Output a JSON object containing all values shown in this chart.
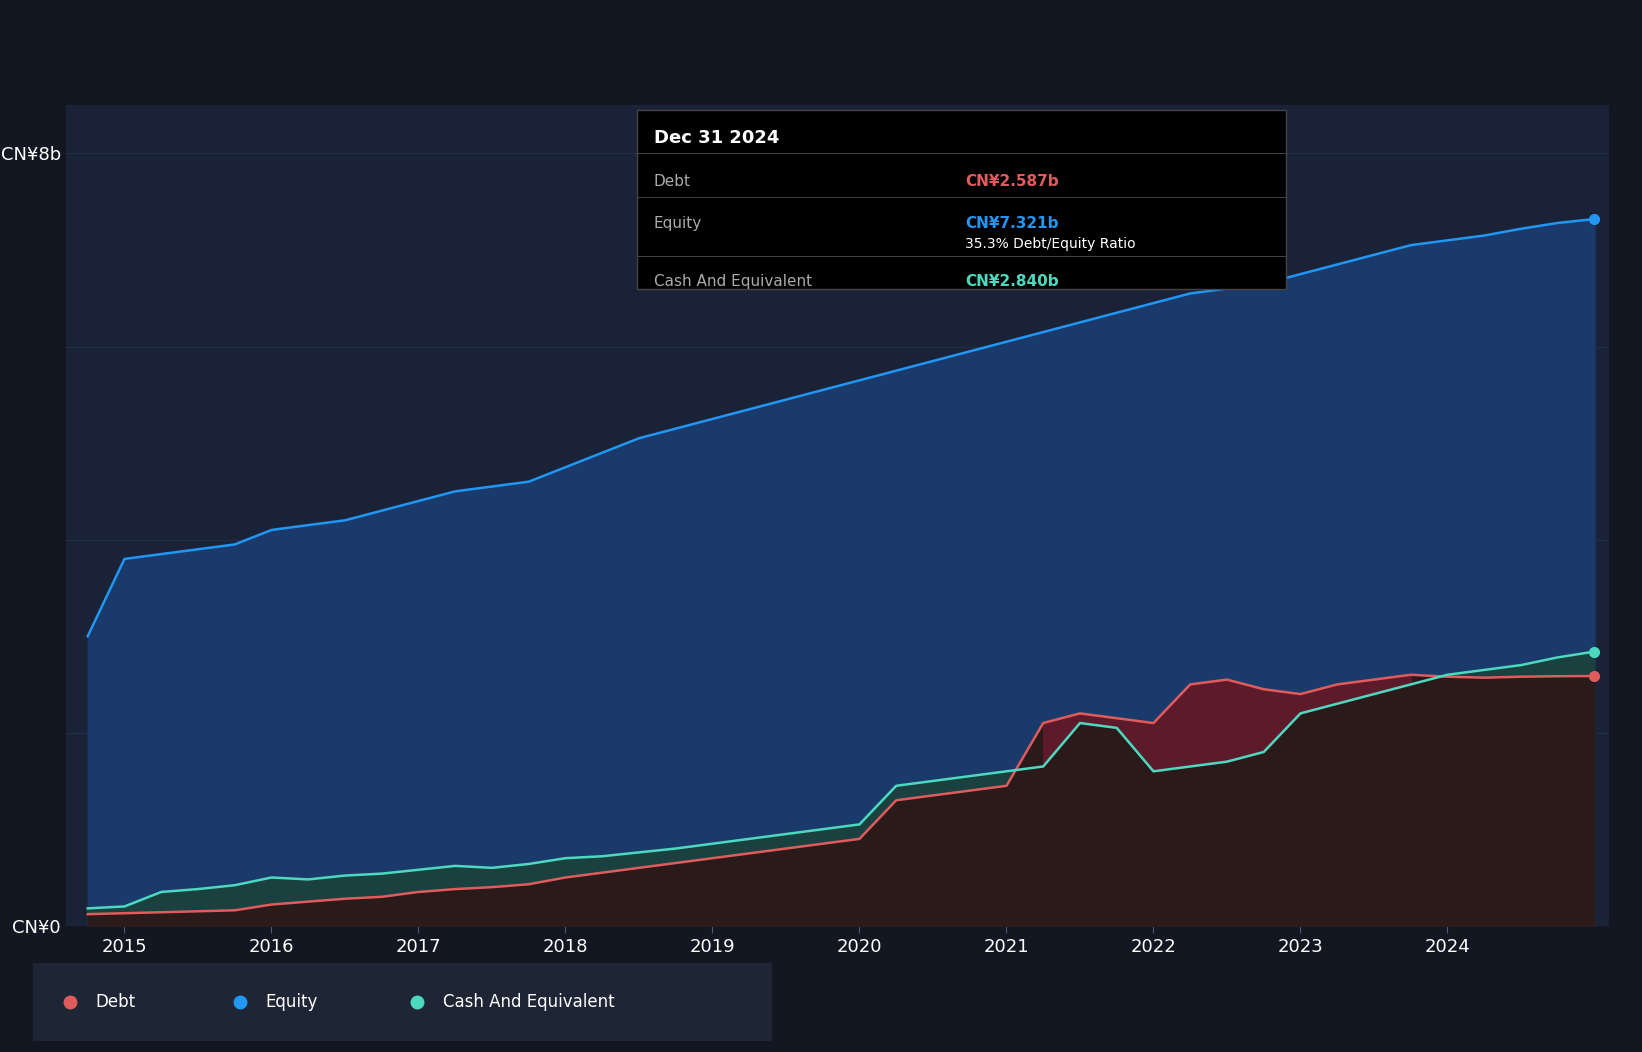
{
  "bg_color": "#131722",
  "chart_area_color": "#1a2238",
  "equity_color": "#2196f3",
  "debt_color": "#e05c5c",
  "cash_color": "#4dd9c0",
  "equity_fill": "#1a3a6b",
  "grid_color": "#2a3550",
  "tooltip_bg": "#000000",
  "tooltip_date": "Dec 31 2024",
  "tooltip_debt_label": "Debt",
  "tooltip_debt_value": "CN¥2.587b",
  "tooltip_equity_label": "Equity",
  "tooltip_equity_value": "CN¥7.321b",
  "tooltip_ratio": "35.3% Debt/Equity Ratio",
  "tooltip_cash_label": "Cash And Equivalent",
  "tooltip_cash_value": "CN¥2.840b",
  "legend_debt": "Debt",
  "legend_equity": "Equity",
  "legend_cash": "Cash And Equivalent",
  "years": [
    2014.75,
    2015.0,
    2015.25,
    2015.5,
    2015.75,
    2016.0,
    2016.25,
    2016.5,
    2016.75,
    2017.0,
    2017.25,
    2017.5,
    2017.75,
    2018.0,
    2018.25,
    2018.5,
    2018.75,
    2019.0,
    2019.25,
    2019.5,
    2019.75,
    2020.0,
    2020.25,
    2020.5,
    2020.75,
    2021.0,
    2021.25,
    2021.5,
    2021.75,
    2022.0,
    2022.25,
    2022.5,
    2022.75,
    2023.0,
    2023.25,
    2023.5,
    2023.75,
    2024.0,
    2024.25,
    2024.5,
    2024.75,
    2025.0
  ],
  "equity": [
    3.0,
    3.8,
    3.85,
    3.9,
    3.95,
    4.1,
    4.15,
    4.2,
    4.3,
    4.4,
    4.5,
    4.55,
    4.6,
    4.75,
    4.9,
    5.05,
    5.15,
    5.25,
    5.35,
    5.45,
    5.55,
    5.65,
    5.75,
    5.85,
    5.95,
    6.05,
    6.15,
    6.25,
    6.35,
    6.45,
    6.55,
    6.6,
    6.65,
    6.75,
    6.85,
    6.95,
    7.05,
    7.1,
    7.15,
    7.22,
    7.28,
    7.321
  ],
  "debt": [
    0.12,
    0.13,
    0.14,
    0.15,
    0.16,
    0.22,
    0.25,
    0.28,
    0.3,
    0.35,
    0.38,
    0.4,
    0.43,
    0.5,
    0.55,
    0.6,
    0.65,
    0.7,
    0.75,
    0.8,
    0.85,
    0.9,
    1.3,
    1.35,
    1.4,
    1.45,
    2.1,
    2.2,
    2.15,
    2.1,
    2.5,
    2.55,
    2.45,
    2.4,
    2.5,
    2.55,
    2.6,
    2.58,
    2.57,
    2.58,
    2.585,
    2.587
  ],
  "cash": [
    0.18,
    0.2,
    0.35,
    0.38,
    0.42,
    0.5,
    0.48,
    0.52,
    0.54,
    0.58,
    0.62,
    0.6,
    0.64,
    0.7,
    0.72,
    0.76,
    0.8,
    0.85,
    0.9,
    0.95,
    1.0,
    1.05,
    1.45,
    1.5,
    1.55,
    1.6,
    1.65,
    2.1,
    2.05,
    1.6,
    1.65,
    1.7,
    1.8,
    2.2,
    2.3,
    2.4,
    2.5,
    2.6,
    2.65,
    2.7,
    2.78,
    2.84
  ],
  "xlim": [
    2014.6,
    2025.1
  ],
  "ylim": [
    0,
    8.5
  ],
  "ytick_labels": [
    "CN¥0",
    "CN¥8b"
  ],
  "ytick_vals": [
    0,
    8
  ],
  "grid_lines": [
    2,
    4,
    6,
    8
  ],
  "xticks": [
    2015,
    2016,
    2017,
    2018,
    2019,
    2020,
    2021,
    2022,
    2023,
    2024
  ]
}
